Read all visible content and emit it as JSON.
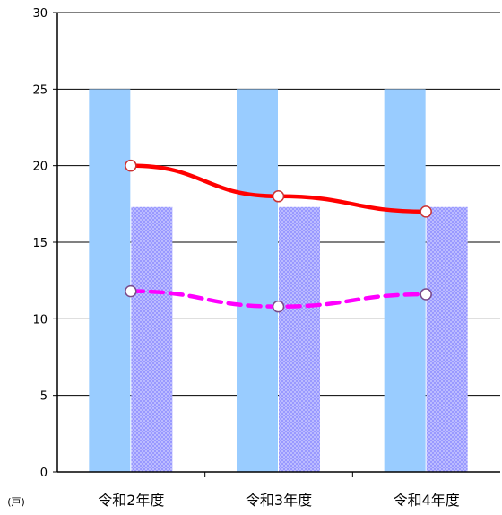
{
  "chart_data": {
    "type": "bar",
    "categories": [
      "令和2年度",
      "令和3年度",
      "令和4年度"
    ],
    "unit_label": "(戸)",
    "ylim": [
      0,
      30
    ],
    "yticks": [
      0,
      5,
      10,
      15,
      20,
      25,
      30
    ],
    "grid": true,
    "bar_series": [
      {
        "values": [
          25,
          25,
          25
        ],
        "color": "#99ccff",
        "pattern": "solid"
      },
      {
        "values": [
          17.3,
          17.3,
          17.3
        ],
        "color": "#9999ff",
        "pattern": "dotted"
      }
    ],
    "line_series": [
      {
        "values": [
          20,
          18,
          17
        ],
        "color": "#ff0000",
        "dash": "solid"
      },
      {
        "values": [
          11.8,
          10.8,
          11.6
        ],
        "color": "#ff00ff",
        "dash": "dashed"
      }
    ]
  }
}
